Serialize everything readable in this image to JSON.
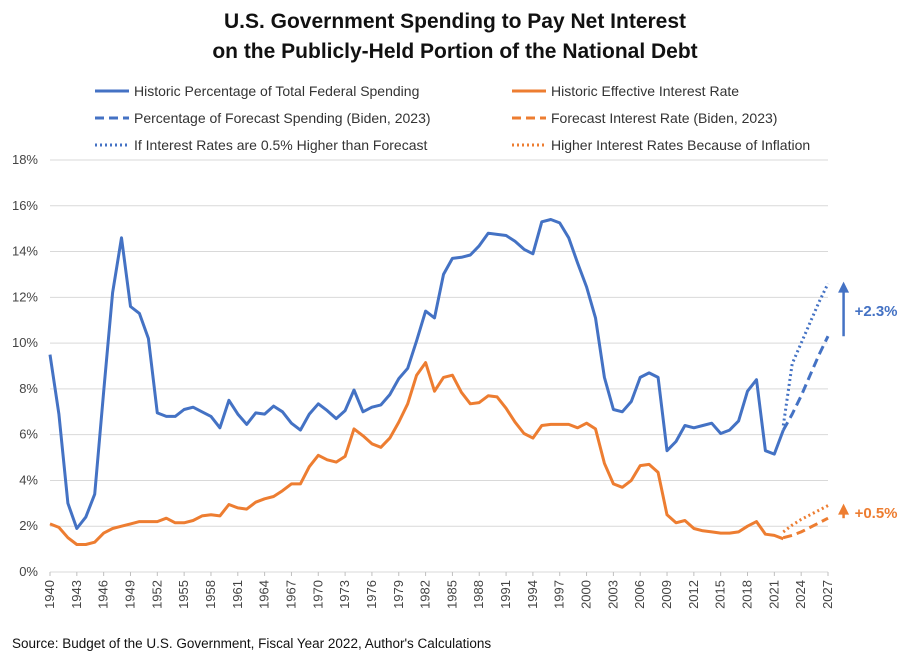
{
  "chart_data": {
    "type": "line",
    "title_line1": "U.S. Government Spending to Pay Net Interest",
    "title_line2": "on the Publicly-Held Portion of the National Debt",
    "source": "Source:  Budget of the U.S. Government,  Fiscal Year 2022, Author's Calculations",
    "ylim": [
      0,
      18
    ],
    "xlim": [
      1940,
      2027
    ],
    "y_ticks": [
      "0%",
      "2%",
      "4%",
      "6%",
      "8%",
      "10%",
      "12%",
      "14%",
      "16%",
      "18%"
    ],
    "x_ticks": [
      1940,
      1943,
      1946,
      1949,
      1952,
      1955,
      1958,
      1961,
      1964,
      1967,
      1970,
      1973,
      1976,
      1979,
      1982,
      1985,
      1988,
      1991,
      1994,
      1997,
      2000,
      2003,
      2006,
      2009,
      2012,
      2015,
      2018,
      2021,
      2024,
      2027
    ],
    "grid": "horizontal",
    "legend_position": "top",
    "colors": {
      "blue": "#4472C4",
      "orange": "#ED7D31",
      "grid": "#d9d9d9"
    },
    "series": [
      {
        "name": "Historic Percentage of Total Federal Spending",
        "color": "#4472C4",
        "style": "solid",
        "x": [
          1940,
          1941,
          1942,
          1943,
          1944,
          1945,
          1946,
          1947,
          1948,
          1949,
          1950,
          1951,
          1952,
          1953,
          1954,
          1955,
          1956,
          1957,
          1958,
          1959,
          1960,
          1961,
          1962,
          1963,
          1964,
          1965,
          1966,
          1967,
          1968,
          1969,
          1970,
          1971,
          1972,
          1973,
          1974,
          1975,
          1976,
          1977,
          1978,
          1979,
          1980,
          1981,
          1982,
          1983,
          1984,
          1985,
          1986,
          1987,
          1988,
          1989,
          1990,
          1991,
          1992,
          1993,
          1994,
          1995,
          1996,
          1997,
          1998,
          1999,
          2000,
          2001,
          2002,
          2003,
          2004,
          2005,
          2006,
          2007,
          2008,
          2009,
          2010,
          2011,
          2012,
          2013,
          2014,
          2015,
          2016,
          2017,
          2018,
          2019,
          2020,
          2021,
          2022
        ],
        "values": [
          9.5,
          6.9,
          3.0,
          1.9,
          2.4,
          3.4,
          7.9,
          12.2,
          14.6,
          11.6,
          11.3,
          10.2,
          6.95,
          6.8,
          6.8,
          7.1,
          7.2,
          7.0,
          6.8,
          6.3,
          7.5,
          6.9,
          6.45,
          6.95,
          6.9,
          7.25,
          7.0,
          6.5,
          6.2,
          6.9,
          7.35,
          7.05,
          6.7,
          7.05,
          7.95,
          7.0,
          7.2,
          7.3,
          7.75,
          8.45,
          8.9,
          10.1,
          11.4,
          11.1,
          13.0,
          13.7,
          13.75,
          13.85,
          14.25,
          14.8,
          14.75,
          14.7,
          14.45,
          14.1,
          13.9,
          15.3,
          15.4,
          15.25,
          14.6,
          13.5,
          12.45,
          11.1,
          8.5,
          7.1,
          7.0,
          7.45,
          8.5,
          8.7,
          8.5,
          5.3,
          5.7,
          6.4,
          6.3,
          6.4,
          6.5,
          6.05,
          6.2,
          6.6,
          7.9,
          8.4,
          5.3,
          5.15,
          6.2
        ]
      },
      {
        "name": "Percentage of Forecast Spending (Biden, 2023)",
        "color": "#4472C4",
        "style": "dashed",
        "x": [
          2022,
          2023,
          2024,
          2025,
          2026,
          2027
        ],
        "values": [
          6.2,
          6.9,
          7.7,
          8.6,
          9.5,
          10.3
        ]
      },
      {
        "name": "If Interest Rates are 0.5% Higher than Forecast",
        "color": "#4472C4",
        "style": "dotted",
        "x": [
          2022,
          2023,
          2024,
          2025,
          2026,
          2027
        ],
        "values": [
          6.4,
          9.1,
          10.0,
          10.9,
          11.8,
          12.6
        ]
      },
      {
        "name": "Historic Effective Interest Rate",
        "color": "#ED7D31",
        "style": "solid",
        "x": [
          1940,
          1941,
          1942,
          1943,
          1944,
          1945,
          1946,
          1947,
          1948,
          1949,
          1950,
          1951,
          1952,
          1953,
          1954,
          1955,
          1956,
          1957,
          1958,
          1959,
          1960,
          1961,
          1962,
          1963,
          1964,
          1965,
          1966,
          1967,
          1968,
          1969,
          1970,
          1971,
          1972,
          1973,
          1974,
          1975,
          1976,
          1977,
          1978,
          1979,
          1980,
          1981,
          1982,
          1983,
          1984,
          1985,
          1986,
          1987,
          1988,
          1989,
          1990,
          1991,
          1992,
          1993,
          1994,
          1995,
          1996,
          1997,
          1998,
          1999,
          2000,
          2001,
          2002,
          2003,
          2004,
          2005,
          2006,
          2007,
          2008,
          2009,
          2010,
          2011,
          2012,
          2013,
          2014,
          2015,
          2016,
          2017,
          2018,
          2019,
          2020,
          2021,
          2022
        ],
        "values": [
          2.1,
          1.95,
          1.5,
          1.2,
          1.2,
          1.3,
          1.7,
          1.9,
          2.0,
          2.1,
          2.2,
          2.2,
          2.2,
          2.35,
          2.15,
          2.15,
          2.25,
          2.45,
          2.5,
          2.45,
          2.95,
          2.8,
          2.75,
          3.05,
          3.2,
          3.3,
          3.55,
          3.85,
          3.85,
          4.6,
          5.1,
          4.9,
          4.8,
          5.05,
          6.25,
          5.95,
          5.6,
          5.45,
          5.85,
          6.55,
          7.35,
          8.6,
          9.15,
          7.9,
          8.5,
          8.6,
          7.85,
          7.35,
          7.4,
          7.7,
          7.65,
          7.15,
          6.55,
          6.05,
          5.85,
          6.4,
          6.45,
          6.45,
          6.45,
          6.3,
          6.5,
          6.25,
          4.75,
          3.85,
          3.7,
          4.0,
          4.65,
          4.7,
          4.35,
          2.5,
          2.15,
          2.25,
          1.9,
          1.8,
          1.75,
          1.7,
          1.7,
          1.75,
          2.0,
          2.2,
          1.65,
          1.6,
          1.45
        ]
      },
      {
        "name": "Forecast Interest Rate (Biden, 2023)",
        "color": "#ED7D31",
        "style": "dashed",
        "x": [
          2022,
          2023,
          2024,
          2025,
          2026,
          2027
        ],
        "values": [
          1.5,
          1.6,
          1.75,
          1.95,
          2.15,
          2.35
        ]
      },
      {
        "name": "Higher Interest Rates Because of Inflation",
        "color": "#ED7D31",
        "style": "dotted",
        "x": [
          2022,
          2023,
          2024,
          2025,
          2026,
          2027
        ],
        "values": [
          1.75,
          2.05,
          2.3,
          2.5,
          2.7,
          2.9
        ]
      }
    ],
    "annotations": [
      {
        "text": "+2.3%",
        "color": "#4472C4",
        "arrow_from": 10.3,
        "arrow_to": 12.6,
        "x": 2027.4
      },
      {
        "text": "+0.5%",
        "color": "#ED7D31",
        "arrow_from": 2.35,
        "arrow_to": 2.9,
        "x": 2027.4
      }
    ]
  }
}
